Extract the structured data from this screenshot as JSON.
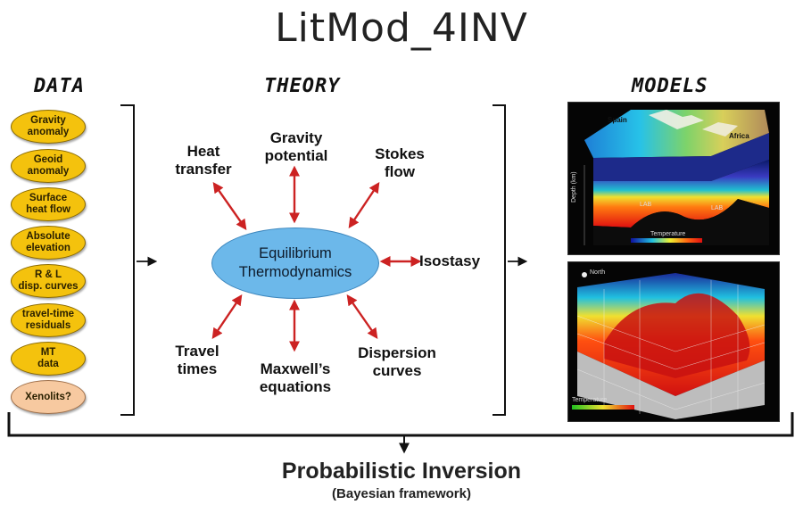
{
  "title": "LitMod_4INV",
  "columns": {
    "data": "DATA",
    "theory": "THEORY",
    "models": "MODELS"
  },
  "data_items": [
    {
      "line1": "Gravity",
      "line2": "anomaly"
    },
    {
      "line1": "Geoid",
      "line2": "anomaly"
    },
    {
      "line1": "Surface",
      "line2": "heat flow"
    },
    {
      "line1": "Absolute",
      "line2": "elevation"
    },
    {
      "line1": "R & L",
      "line2": "disp. curves"
    },
    {
      "line1": "travel-time",
      "line2": "residuals"
    },
    {
      "line1": "MT",
      "line2": "data"
    },
    {
      "line1": "Xenolits?",
      "line2": ""
    }
  ],
  "theory": {
    "center_line1": "Equilibrium",
    "center_line2": "Thermodynamics",
    "heat_transfer": {
      "line1": "Heat",
      "line2": "transfer"
    },
    "gravity_potential": {
      "line1": "Gravity",
      "line2": "potential"
    },
    "stokes_flow": {
      "line1": "Stokes",
      "line2": "flow"
    },
    "isostasy": "Isostasy",
    "travel_times": {
      "line1": "Travel",
      "line2": "times"
    },
    "maxwell": {
      "line1": "Maxwell’s",
      "line2": "equations"
    },
    "dispersion": {
      "line1": "Dispersion",
      "line2": "curves"
    }
  },
  "models": {
    "top": {
      "spain": "Spain",
      "africa": "Africa",
      "lab1": "LAB",
      "lab2": "LAB",
      "legend": "Temperature",
      "depth_label": "Depth (km)"
    },
    "bottom": {
      "north": "North",
      "legend": "Temperature"
    }
  },
  "footer": {
    "title": "Probabilistic Inversion",
    "subtitle": "(Bayesian framework)"
  },
  "colors": {
    "pill": "#f4c20d",
    "pill_alt": "#f7c9a0",
    "ellipse": "#6cb8ea",
    "arrow": "#cc2222"
  }
}
